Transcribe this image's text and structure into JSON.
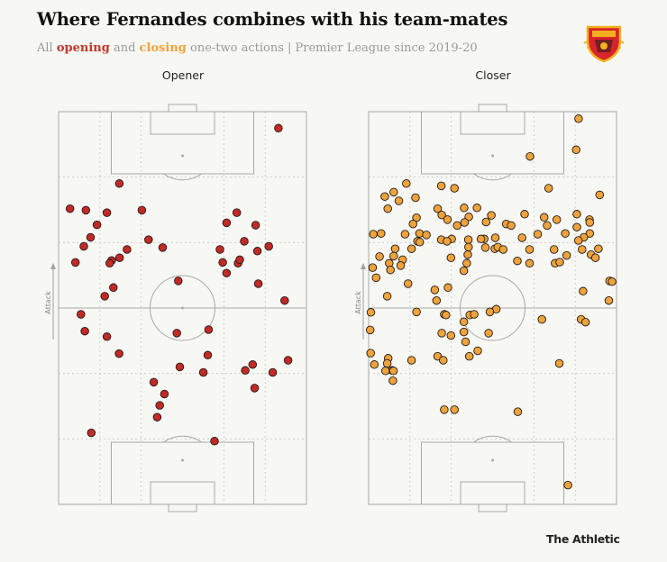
{
  "header": {
    "title": "Where Fernandes combines with his team-mates",
    "subtitle_prefix": "All ",
    "subtitle_opening": "opening",
    "subtitle_and": " and ",
    "subtitle_closing": "closing",
    "subtitle_suffix": " one-two actions | Premier League since 2019-20"
  },
  "footer": {
    "brand": "The Athletic"
  },
  "colors": {
    "opener": "#c42a25",
    "closer": "#f0a23b",
    "pitch_line": "#a8a8a8",
    "grid": "#c8c8c8"
  },
  "logo": {
    "icon": "manchester-united-crest"
  },
  "chart_data": [
    {
      "type": "scatter",
      "title": "Opener",
      "axis_label": "Attack",
      "xlim": [
        0,
        100
      ],
      "ylim": [
        0,
        100
      ],
      "points": [
        [
          88.7,
          95.8
        ],
        [
          24.5,
          81.7
        ],
        [
          4.6,
          75.3
        ],
        [
          11.0,
          74.9
        ],
        [
          19.5,
          74.3
        ],
        [
          33.6,
          74.9
        ],
        [
          71.9,
          74.3
        ],
        [
          15.5,
          71.2
        ],
        [
          67.8,
          71.7
        ],
        [
          79.5,
          71.1
        ],
        [
          12.9,
          68.0
        ],
        [
          36.3,
          67.4
        ],
        [
          74.9,
          67.0
        ],
        [
          10.2,
          65.7
        ],
        [
          27.6,
          64.9
        ],
        [
          42.0,
          65.4
        ],
        [
          65.1,
          64.9
        ],
        [
          84.8,
          65.7
        ],
        [
          24.6,
          62.8
        ],
        [
          21.4,
          62.1
        ],
        [
          80.2,
          64.5
        ],
        [
          6.8,
          61.6
        ],
        [
          20.6,
          61.4
        ],
        [
          66.2,
          61.6
        ],
        [
          72.4,
          61.4
        ],
        [
          73.1,
          62.3
        ],
        [
          67.8,
          58.9
        ],
        [
          48.3,
          56.9
        ],
        [
          80.6,
          56.2
        ],
        [
          22.1,
          55.2
        ],
        [
          18.6,
          53.0
        ],
        [
          91.2,
          51.9
        ],
        [
          9.0,
          48.4
        ],
        [
          60.5,
          44.5
        ],
        [
          10.6,
          44.1
        ],
        [
          47.7,
          43.6
        ],
        [
          19.5,
          42.7
        ],
        [
          24.4,
          38.4
        ],
        [
          92.6,
          36.7
        ],
        [
          60.2,
          38.0
        ],
        [
          78.3,
          35.6
        ],
        [
          48.9,
          35.0
        ],
        [
          58.4,
          33.6
        ],
        [
          75.3,
          34.1
        ],
        [
          86.4,
          33.6
        ],
        [
          38.4,
          31.1
        ],
        [
          79.1,
          29.6
        ],
        [
          42.7,
          28.1
        ],
        [
          13.2,
          18.2
        ],
        [
          40.8,
          25.2
        ],
        [
          62.9,
          16.1
        ],
        [
          39.8,
          22.2
        ]
      ]
    },
    {
      "type": "scatter",
      "title": "Closer",
      "axis_label": "Attack",
      "xlim": [
        0,
        100
      ],
      "ylim": [
        0,
        100
      ],
      "points": [
        [
          84.7,
          98.2
        ],
        [
          83.7,
          90.3
        ],
        [
          65.1,
          88.6
        ],
        [
          15.2,
          81.7
        ],
        [
          29.3,
          81.1
        ],
        [
          34.6,
          80.5
        ],
        [
          72.6,
          80.5
        ],
        [
          10.1,
          79.5
        ],
        [
          6.5,
          78.4
        ],
        [
          12.2,
          77.3
        ],
        [
          18.9,
          78.1
        ],
        [
          93.2,
          78.8
        ],
        [
          7.7,
          75.3
        ],
        [
          27.8,
          75.3
        ],
        [
          38.5,
          75.5
        ],
        [
          43.7,
          75.5
        ],
        [
          62.9,
          73.9
        ],
        [
          84.0,
          73.9
        ],
        [
          19.3,
          73.0
        ],
        [
          29.5,
          73.7
        ],
        [
          31.8,
          72.5
        ],
        [
          40.4,
          73.2
        ],
        [
          49.5,
          73.6
        ],
        [
          70.8,
          73.1
        ],
        [
          75.9,
          72.5
        ],
        [
          89.1,
          72.5
        ],
        [
          17.9,
          71.4
        ],
        [
          35.7,
          71.0
        ],
        [
          38.7,
          71.8
        ],
        [
          47.4,
          71.9
        ],
        [
          55.5,
          71.4
        ],
        [
          57.5,
          71.0
        ],
        [
          72.0,
          71.0
        ],
        [
          84.0,
          70.6
        ],
        [
          89.2,
          71.8
        ],
        [
          1.9,
          68.8
        ],
        [
          5.0,
          69.0
        ],
        [
          14.7,
          68.8
        ],
        [
          20.5,
          69.0
        ],
        [
          23.3,
          68.6
        ],
        [
          33.5,
          67.6
        ],
        [
          46.6,
          67.6
        ],
        [
          51.1,
          67.9
        ],
        [
          61.9,
          67.9
        ],
        [
          68.2,
          68.8
        ],
        [
          79.3,
          69.0
        ],
        [
          89.2,
          69.0
        ],
        [
          19.7,
          67.0
        ],
        [
          20.6,
          66.8
        ],
        [
          29.3,
          67.4
        ],
        [
          31.6,
          67.0
        ],
        [
          40.2,
          67.4
        ],
        [
          45.3,
          67.6
        ],
        [
          86.8,
          68.0
        ],
        [
          84.6,
          67.2
        ],
        [
          10.7,
          65.1
        ],
        [
          17.3,
          65.1
        ],
        [
          40.3,
          65.5
        ],
        [
          47.1,
          65.4
        ],
        [
          50.9,
          65.1
        ],
        [
          52.1,
          65.5
        ],
        [
          54.3,
          64.9
        ],
        [
          64.9,
          64.9
        ],
        [
          74.8,
          64.9
        ],
        [
          86.1,
          64.9
        ],
        [
          92.7,
          65.1
        ],
        [
          4.4,
          63.1
        ],
        [
          10.1,
          63.2
        ],
        [
          13.7,
          62.3
        ],
        [
          33.2,
          62.8
        ],
        [
          40.0,
          63.6
        ],
        [
          79.9,
          63.4
        ],
        [
          89.7,
          63.6
        ],
        [
          91.5,
          62.8
        ],
        [
          8.3,
          61.4
        ],
        [
          12.9,
          60.8
        ],
        [
          39.6,
          61.4
        ],
        [
          60.0,
          62.0
        ],
        [
          64.9,
          61.4
        ],
        [
          75.2,
          61.4
        ],
        [
          77.1,
          61.7
        ],
        [
          1.6,
          60.3
        ],
        [
          3.0,
          57.7
        ],
        [
          8.8,
          59.7
        ],
        [
          38.4,
          59.5
        ],
        [
          97.2,
          56.9
        ],
        [
          98.2,
          56.7
        ],
        [
          15.9,
          56.2
        ],
        [
          32.0,
          55.2
        ],
        [
          26.7,
          54.6
        ],
        [
          86.5,
          54.3
        ],
        [
          7.5,
          53.0
        ],
        [
          27.4,
          51.9
        ],
        [
          96.9,
          51.9
        ],
        [
          51.5,
          49.7
        ],
        [
          0.9,
          48.9
        ],
        [
          19.3,
          49.0
        ],
        [
          30.5,
          48.4
        ],
        [
          31.2,
          48.2
        ],
        [
          85.7,
          47.1
        ],
        [
          69.9,
          47.1
        ],
        [
          87.5,
          46.4
        ],
        [
          38.4,
          46.5
        ],
        [
          40.8,
          48.2
        ],
        [
          42.6,
          48.4
        ],
        [
          48.9,
          49.0
        ],
        [
          38.4,
          43.9
        ],
        [
          0.6,
          44.4
        ],
        [
          48.4,
          43.6
        ],
        [
          33.2,
          43.0
        ],
        [
          29.5,
          43.6
        ],
        [
          39.1,
          41.4
        ],
        [
          0.8,
          38.5
        ],
        [
          27.8,
          37.7
        ],
        [
          17.3,
          36.7
        ],
        [
          7.9,
          37.2
        ],
        [
          40.6,
          37.7
        ],
        [
          30.1,
          36.7
        ],
        [
          7.5,
          35.9
        ],
        [
          76.9,
          35.9
        ],
        [
          44.0,
          39.1
        ],
        [
          9.5,
          34.1
        ],
        [
          10.0,
          34.0
        ],
        [
          6.8,
          34.0
        ],
        [
          2.3,
          35.6
        ],
        [
          9.8,
          31.5
        ],
        [
          30.5,
          24.1
        ],
        [
          34.6,
          24.1
        ],
        [
          60.2,
          23.6
        ],
        [
          80.4,
          4.9
        ]
      ]
    }
  ]
}
